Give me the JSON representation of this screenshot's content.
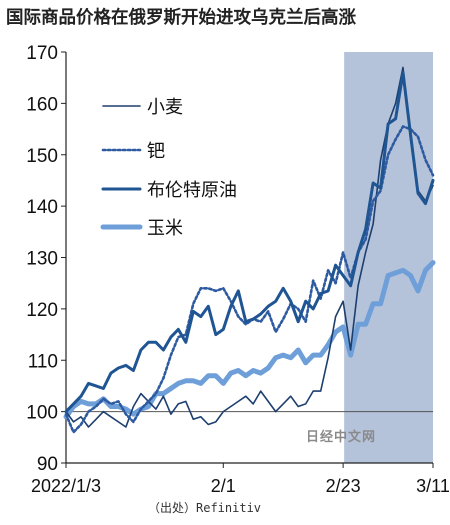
{
  "title": "国际商品价格在俄罗斯开始进攻乌克兰后高涨",
  "source": "（出处）Refinitiv",
  "watermark": "日经中文网",
  "chart_data": {
    "type": "line",
    "ylim": [
      90,
      170
    ],
    "y_ticks": [
      90,
      100,
      110,
      120,
      130,
      140,
      150,
      160,
      170
    ],
    "x_ticks": [
      {
        "label": "2022/1/3",
        "index": 0
      },
      {
        "label": "2/1",
        "index": 21
      },
      {
        "label": "2/23",
        "index": 37
      },
      {
        "label": "3/11",
        "index": 49
      }
    ],
    "shaded_range": [
      37,
      50
    ],
    "reference_line": 100,
    "colors": {
      "shade": "#b5c3da",
      "wheat": "#1d3f6f",
      "palladium": "#2d5aa0",
      "brent": "#1f5592",
      "corn": "#6f9fd8",
      "ref": "#555555"
    },
    "series": [
      {
        "name": "小麦",
        "style": "thin",
        "values": [
          100,
          98,
          99,
          97,
          98.5,
          100,
          99,
          98,
          97,
          101,
          103.5,
          102,
          100.5,
          103,
          99.5,
          101.5,
          102,
          98.5,
          99,
          97.5,
          98,
          100,
          101,
          102,
          103,
          101.5,
          104,
          102,
          100,
          101.5,
          103,
          101,
          101.5,
          104,
          104,
          110.5,
          118.5,
          121.5,
          112,
          124.5,
          131,
          136.5,
          149,
          156,
          160,
          167,
          153,
          143,
          141,
          144
        ]
      },
      {
        "name": "钯",
        "style": "dotted",
        "values": [
          99.5,
          96,
          97.5,
          100,
          101,
          102.5,
          101.5,
          102,
          99.5,
          98,
          100.5,
          102,
          103.5,
          106.5,
          111,
          114.5,
          115,
          121,
          124,
          124,
          123.5,
          124,
          121.5,
          118.5,
          117,
          118,
          117.5,
          119.5,
          115.5,
          118,
          121,
          120,
          117.5,
          125.5,
          122,
          127.5,
          125,
          131,
          126,
          131,
          133.5,
          141,
          143,
          150,
          153,
          155.5,
          155,
          153.5,
          149,
          146
        ]
      },
      {
        "name": "布伦特原油",
        "style": "medium",
        "values": [
          100,
          101.5,
          103,
          105.5,
          105,
          104.5,
          107.5,
          108.5,
          109,
          108,
          112,
          113.5,
          113.5,
          112,
          114.5,
          116,
          113.5,
          119.5,
          118.5,
          120.5,
          115,
          116,
          120.5,
          123.5,
          117.5,
          118,
          119,
          120.5,
          121.5,
          124,
          121.5,
          117.5,
          121.5,
          120,
          123,
          123.5,
          128.5,
          126.5,
          124.5,
          131,
          135.5,
          144.5,
          143.5,
          156,
          157,
          166,
          154,
          142.5,
          140.5,
          145
        ]
      },
      {
        "name": "玉米",
        "style": "thick",
        "values": [
          99,
          101,
          102,
          101.5,
          101.5,
          102.5,
          101,
          101,
          100.5,
          99.5,
          100.5,
          101,
          103.5,
          103.5,
          104.5,
          105.5,
          106,
          106,
          105.5,
          107,
          107,
          105.5,
          107.5,
          108,
          107,
          108,
          107.5,
          108.5,
          110.5,
          111,
          110.5,
          112,
          109.5,
          111,
          111,
          113,
          115.5,
          116.5,
          111,
          117,
          117,
          121,
          121,
          126.5,
          127,
          127.5,
          126.5,
          123.5,
          127.5,
          129
        ]
      }
    ]
  }
}
